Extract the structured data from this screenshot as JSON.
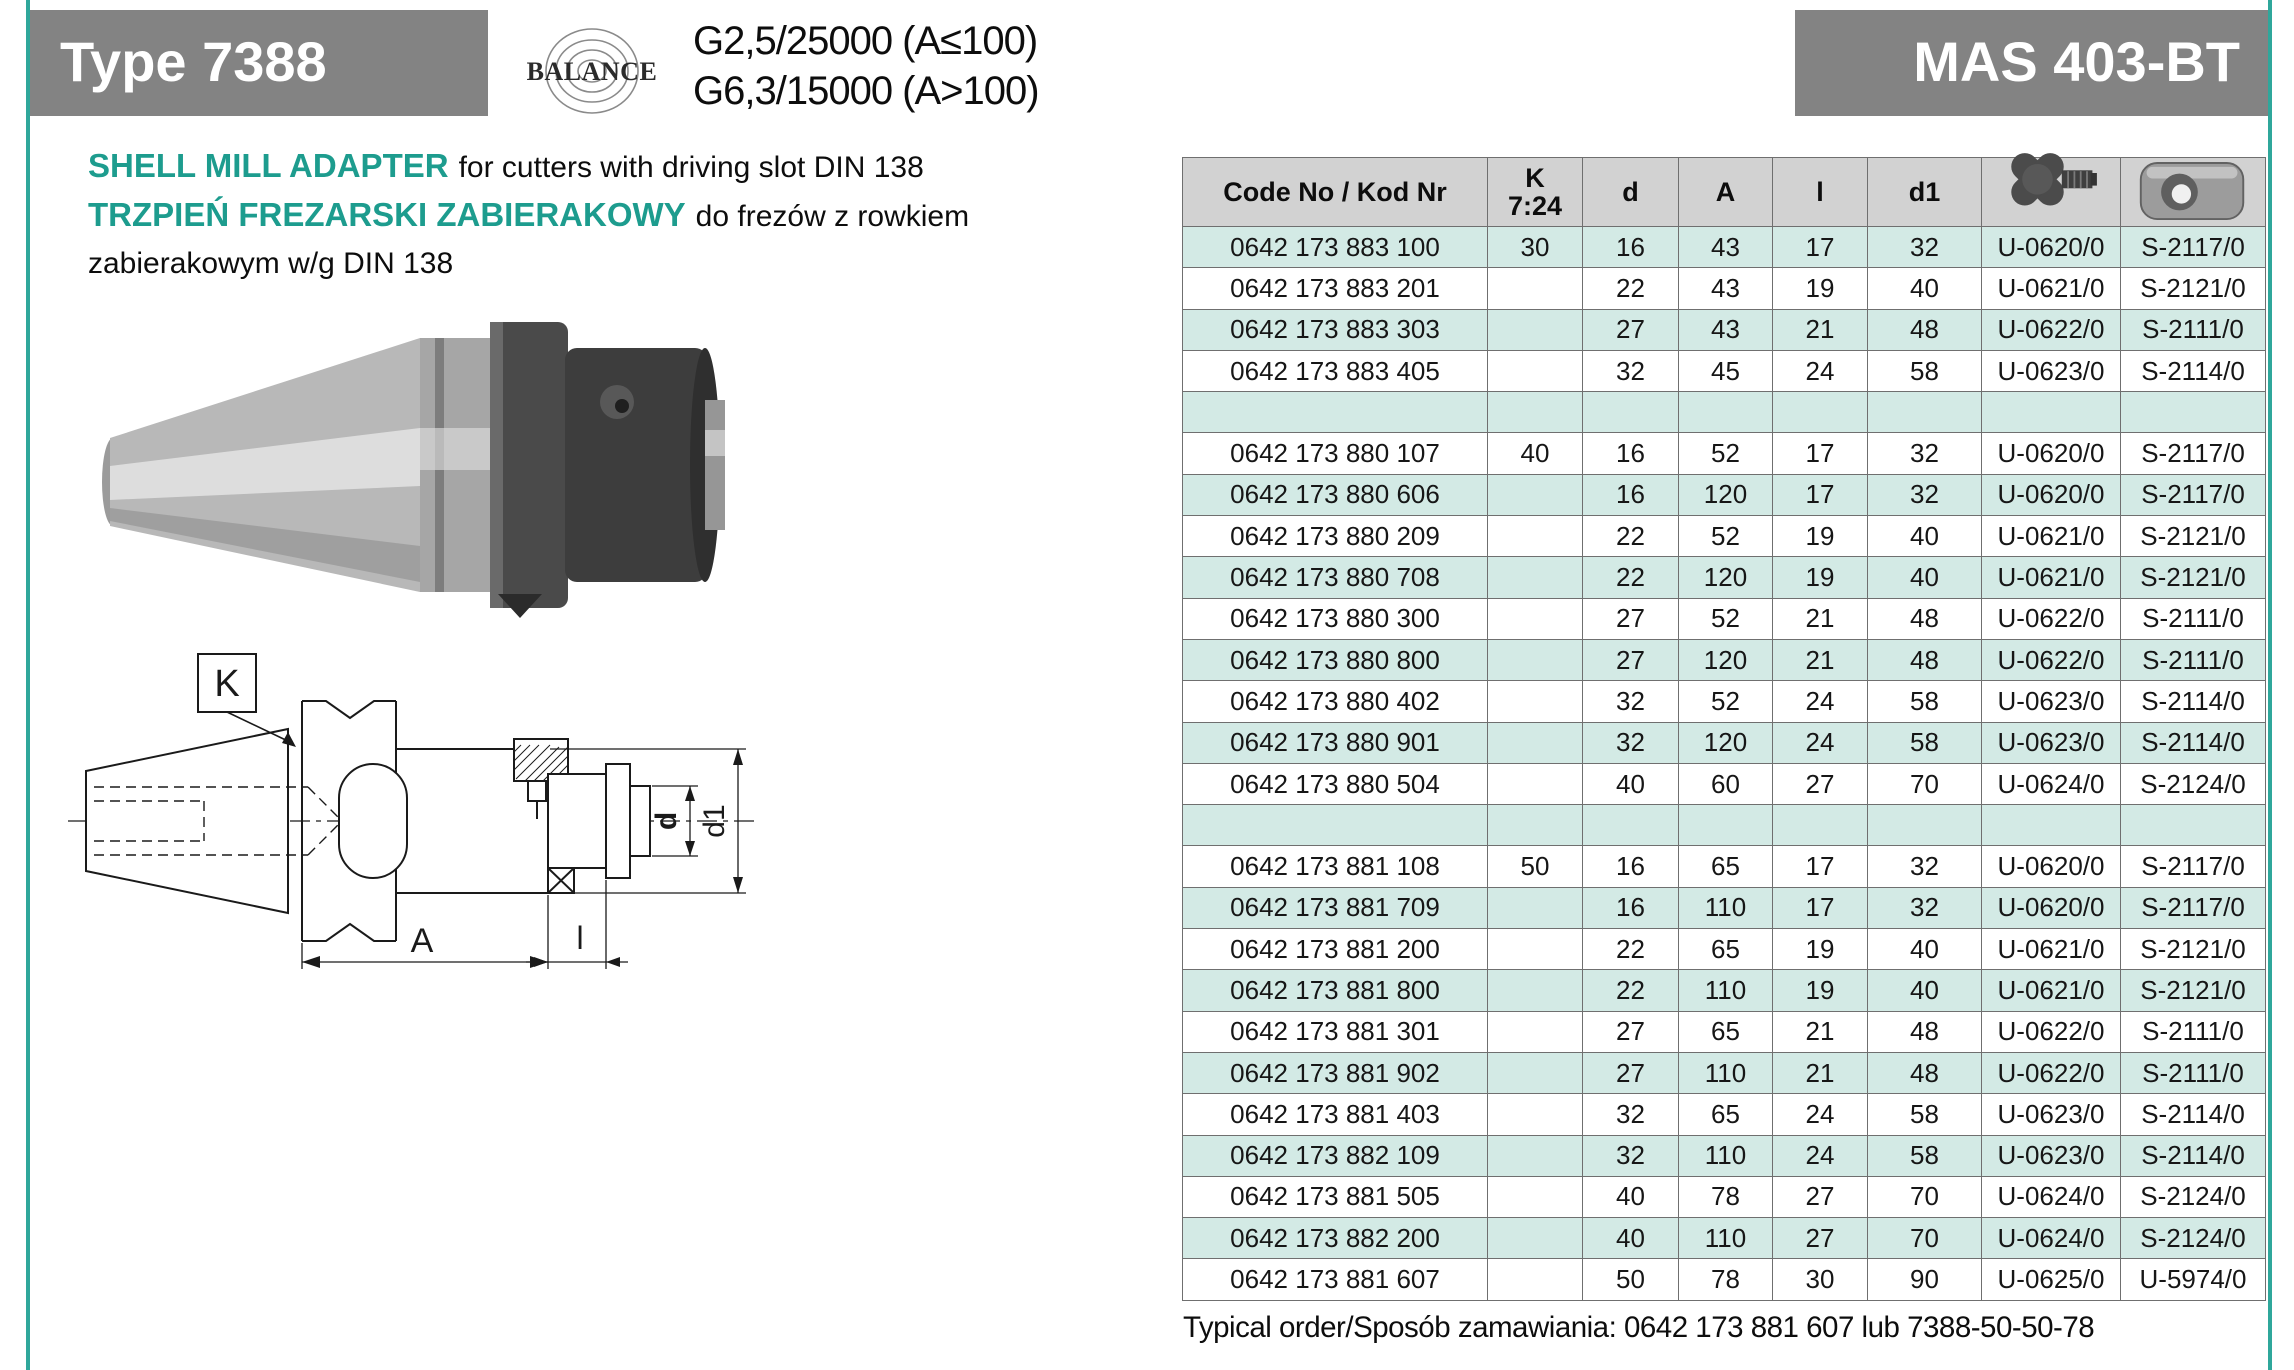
{
  "page": {
    "type_label": "Type 7388",
    "standard_label": "MAS 403-BT",
    "balance": {
      "label": "BALANCE",
      "line1": "G2,5/25000 (A≤100)",
      "line2": "G6,3/15000 (A>100)"
    }
  },
  "intro": {
    "title_en": "SHELL MILL ADAPTER",
    "desc_en": "for cutters with driving slot DIN 138",
    "title_pl": "TRZPIEŃ FREZARSKI ZABIERAKOWY",
    "desc_pl": "do frezów z rowkiem",
    "desc_pl_cont": "zabierakowym w/g DIN 138"
  },
  "drawing": {
    "label_k": "K",
    "label_a": "A",
    "label_l": "l",
    "label_d": "d",
    "label_d1": "d1"
  },
  "table": {
    "headers": {
      "code": "Code No / Kod Nr",
      "k_top": "K",
      "k_bottom": "7:24",
      "d": "d",
      "a": "A",
      "l": "l",
      "d1": "d1",
      "screw_icon": "clover-screw-photo",
      "key_icon": "driving-key-photo"
    },
    "rows": [
      [
        "0642 173 883 100",
        "30",
        "16",
        "43",
        "17",
        "32",
        "U-0620/0",
        "S-2117/0"
      ],
      [
        "0642 173 883 201",
        "",
        "22",
        "43",
        "19",
        "40",
        "U-0621/0",
        "S-2121/0"
      ],
      [
        "0642 173 883 303",
        "",
        "27",
        "43",
        "21",
        "48",
        "U-0622/0",
        "S-2111/0"
      ],
      [
        "0642 173 883 405",
        "",
        "32",
        "45",
        "24",
        "58",
        "U-0623/0",
        "S-2114/0"
      ],
      [
        "",
        "",
        "",
        "",
        "",
        "",
        "",
        ""
      ],
      [
        "0642 173 880 107",
        "40",
        "16",
        "52",
        "17",
        "32",
        "U-0620/0",
        "S-2117/0"
      ],
      [
        "0642 173 880 606",
        "",
        "16",
        "120",
        "17",
        "32",
        "U-0620/0",
        "S-2117/0"
      ],
      [
        "0642 173 880 209",
        "",
        "22",
        "52",
        "19",
        "40",
        "U-0621/0",
        "S-2121/0"
      ],
      [
        "0642 173 880 708",
        "",
        "22",
        "120",
        "19",
        "40",
        "U-0621/0",
        "S-2121/0"
      ],
      [
        "0642 173 880 300",
        "",
        "27",
        "52",
        "21",
        "48",
        "U-0622/0",
        "S-2111/0"
      ],
      [
        "0642 173 880 800",
        "",
        "27",
        "120",
        "21",
        "48",
        "U-0622/0",
        "S-2111/0"
      ],
      [
        "0642 173 880 402",
        "",
        "32",
        "52",
        "24",
        "58",
        "U-0623/0",
        "S-2114/0"
      ],
      [
        "0642 173 880 901",
        "",
        "32",
        "120",
        "24",
        "58",
        "U-0623/0",
        "S-2114/0"
      ],
      [
        "0642 173 880 504",
        "",
        "40",
        "60",
        "27",
        "70",
        "U-0624/0",
        "S-2124/0"
      ],
      [
        "",
        "",
        "",
        "",
        "",
        "",
        "",
        ""
      ],
      [
        "0642 173 881 108",
        "50",
        "16",
        "65",
        "17",
        "32",
        "U-0620/0",
        "S-2117/0"
      ],
      [
        "0642 173 881 709",
        "",
        "16",
        "110",
        "17",
        "32",
        "U-0620/0",
        "S-2117/0"
      ],
      [
        "0642 173 881 200",
        "",
        "22",
        "65",
        "19",
        "40",
        "U-0621/0",
        "S-2121/0"
      ],
      [
        "0642 173 881 800",
        "",
        "22",
        "110",
        "19",
        "40",
        "U-0621/0",
        "S-2121/0"
      ],
      [
        "0642 173 881 301",
        "",
        "27",
        "65",
        "21",
        "48",
        "U-0622/0",
        "S-2111/0"
      ],
      [
        "0642 173 881 902",
        "",
        "27",
        "110",
        "21",
        "48",
        "U-0622/0",
        "S-2111/0"
      ],
      [
        "0642 173 881 403",
        "",
        "32",
        "65",
        "24",
        "58",
        "U-0623/0",
        "S-2114/0"
      ],
      [
        "0642 173 882 109",
        "",
        "32",
        "110",
        "24",
        "58",
        "U-0623/0",
        "S-2114/0"
      ],
      [
        "0642 173 881 505",
        "",
        "40",
        "78",
        "27",
        "70",
        "U-0624/0",
        "S-2124/0"
      ],
      [
        "0642 173 882 200",
        "",
        "40",
        "110",
        "27",
        "70",
        "U-0624/0",
        "S-2124/0"
      ],
      [
        "0642 173 881 607",
        "",
        "50",
        "78",
        "30",
        "90",
        "U-0625/0",
        "U-5974/0"
      ]
    ]
  },
  "footer": {
    "typical_order": "Typical order/Sposób zamawiania: 0642 173 881 607 lub 7388-50-50-78"
  },
  "colors": {
    "accent_teal": "#2FA79B",
    "heading_teal": "#1D9C8E",
    "row_teal": "#D3EAE5",
    "header_gray": "#D2D2D2",
    "box_gray": "#838383"
  }
}
